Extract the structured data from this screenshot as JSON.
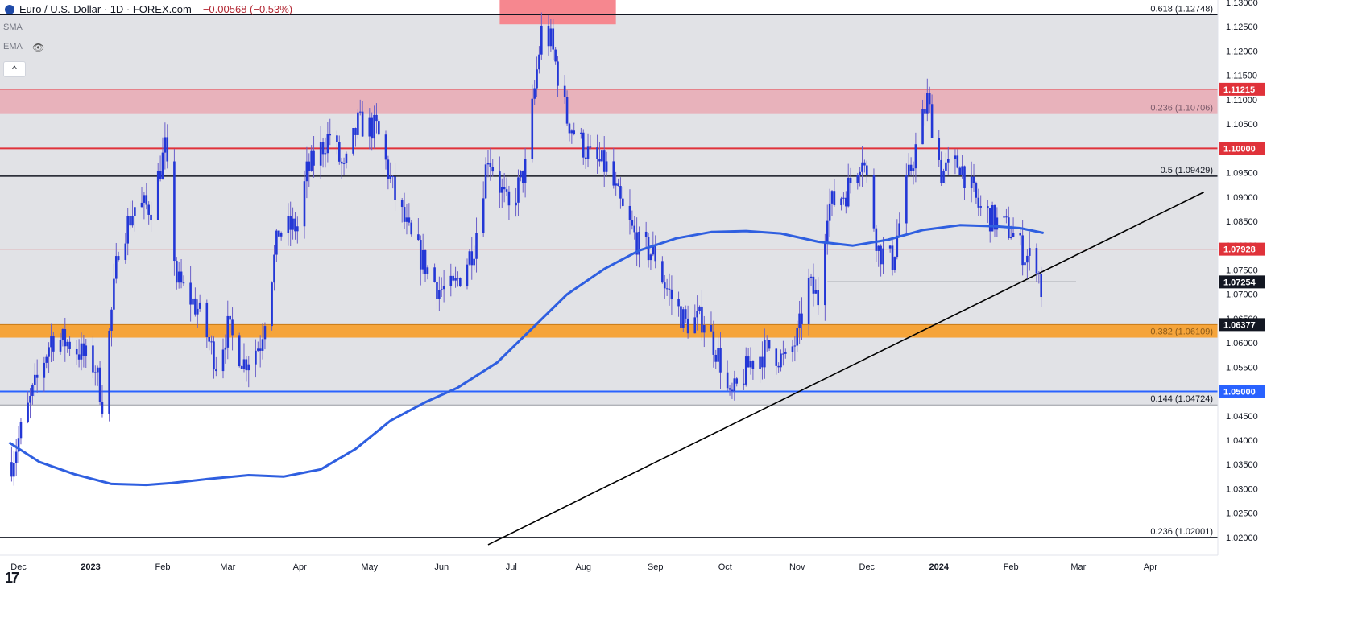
{
  "header": {
    "symbol": "Euro / U.S. Dollar · 1D · FOREX.com",
    "change": "−0.00568 (−0.53%)",
    "indicators": [
      "SMA",
      "EMA"
    ],
    "collapse_label": "^"
  },
  "logo_text": "17",
  "colors": {
    "candle": "#2337d6",
    "ma": "#2f5fe0",
    "red_line": "#e0323a",
    "red_zone": "#e8b2bb",
    "orange_zone": "#f5a43a",
    "blue_line": "#2962ff",
    "gray_zone": "#e1e2e6",
    "top_zone": "#f6878f"
  },
  "chart_data": {
    "type": "candlestick",
    "ylim": [
      1.02,
      1.13
    ],
    "y_ticks": [
      "1.13000",
      "1.12500",
      "1.12000",
      "1.11500",
      "1.11000",
      "1.10500",
      "1.10000",
      "1.09500",
      "1.09000",
      "1.08500",
      "1.08000",
      "1.07500",
      "1.07000",
      "1.06500",
      "1.06000",
      "1.05500",
      "1.05000",
      "1.04500",
      "1.04000",
      "1.03500",
      "1.03000",
      "1.02500",
      "1.02000"
    ],
    "x_labels": [
      {
        "label": "Dec",
        "date": "2022-12-01",
        "bold": false
      },
      {
        "label": "2023",
        "date": "2023-01-01",
        "bold": true
      },
      {
        "label": "Feb",
        "date": "2023-02-01",
        "bold": false
      },
      {
        "label": "Mar",
        "date": "2023-03-01",
        "bold": false
      },
      {
        "label": "Apr",
        "date": "2023-04-01",
        "bold": false
      },
      {
        "label": "May",
        "date": "2023-05-01",
        "bold": false
      },
      {
        "label": "Jun",
        "date": "2023-06-01",
        "bold": false
      },
      {
        "label": "Jul",
        "date": "2023-07-01",
        "bold": false
      },
      {
        "label": "Aug",
        "date": "2023-08-01",
        "bold": false
      },
      {
        "label": "Sep",
        "date": "2023-09-01",
        "bold": false
      },
      {
        "label": "Oct",
        "date": "2023-10-01",
        "bold": false
      },
      {
        "label": "Nov",
        "date": "2023-11-01",
        "bold": false
      },
      {
        "label": "Dec",
        "date": "2023-12-01",
        "bold": false
      },
      {
        "label": "2024",
        "date": "2024-01-01",
        "bold": true
      },
      {
        "label": "Feb",
        "date": "2024-02-01",
        "bold": false
      },
      {
        "label": "Mar",
        "date": "2024-03-01",
        "bold": false
      },
      {
        "label": "Apr",
        "date": "2024-04-01",
        "bold": false
      }
    ],
    "price_badges": [
      {
        "label": "1.11215",
        "value": 1.11215,
        "color": "#e0323a"
      },
      {
        "label": "1.10000",
        "value": 1.1,
        "color": "#e0323a"
      },
      {
        "label": "1.07928",
        "value": 1.07928,
        "color": "#e0323a"
      },
      {
        "label": "1.07254",
        "value": 1.07254,
        "color": "#131722"
      },
      {
        "label": "1.06377",
        "value": 1.06377,
        "color": "#131722"
      },
      {
        "label": "1.05000",
        "value": 1.05,
        "color": "#2962ff"
      }
    ],
    "fib_levels": [
      {
        "label": "0.618 (1.12748)",
        "value": 1.12748
      },
      {
        "label": "0.236 (1.10706)",
        "value": 1.10706
      },
      {
        "label": "0.5 (1.09429)",
        "value": 1.09429
      },
      {
        "label": "0.382 (1.06109)",
        "value": 1.06109
      },
      {
        "label": "0.144 (1.04724)",
        "value": 1.04724
      },
      {
        "label": "0.236 (1.02001)",
        "value": 1.02001
      }
    ],
    "zones": [
      {
        "name": "range",
        "from": 1.04724,
        "to": 1.12748,
        "color": "#e1e2e6"
      },
      {
        "name": "resistance",
        "from": 1.10706,
        "to": 1.11215,
        "color": "#e8b2bb"
      },
      {
        "name": "support",
        "from": 1.06109,
        "to": 1.06377,
        "color": "#f5a43a"
      }
    ],
    "top_box": {
      "date_from": "2023-06-26",
      "date_to": "2023-08-15",
      "from": 1.1255,
      "to": 1.131
    },
    "horizontal_lines": [
      {
        "value": 1.1,
        "color": "#e0323a",
        "width": 2
      },
      {
        "value": 1.07928,
        "color": "#e0323a",
        "width": 1
      },
      {
        "value": 1.05,
        "color": "#2962ff",
        "width": 2
      },
      {
        "value": 1.09429,
        "color": "#131722",
        "width": 1.5
      },
      {
        "value": 1.12748,
        "color": "#131722",
        "width": 1.5
      },
      {
        "value": 1.02001,
        "color": "#131722",
        "width": 1.5
      }
    ],
    "segment_1_07254": {
      "date_from": "2023-11-14",
      "date_to": "2024-02-29",
      "value": 1.07254
    },
    "trendline": [
      [
        "2023-06-21",
        1.0185
      ],
      [
        "2024-04-24",
        1.091
      ]
    ],
    "ma_series": [
      [
        "2022-11-27",
        1.0395
      ],
      [
        "2022-12-10",
        1.0355
      ],
      [
        "2022-12-25",
        1.033
      ],
      [
        "2023-01-10",
        1.031
      ],
      [
        "2023-01-25",
        1.0308
      ],
      [
        "2023-02-05",
        1.0312
      ],
      [
        "2023-02-20",
        1.032
      ],
      [
        "2023-03-10",
        1.0328
      ],
      [
        "2023-03-25",
        1.0325
      ],
      [
        "2023-04-10",
        1.034
      ],
      [
        "2023-04-25",
        1.0382
      ],
      [
        "2023-05-10",
        1.044
      ],
      [
        "2023-05-25",
        1.0478
      ],
      [
        "2023-06-08",
        1.0508
      ],
      [
        "2023-06-25",
        1.056
      ],
      [
        "2023-07-10",
        1.063
      ],
      [
        "2023-07-25",
        1.07
      ],
      [
        "2023-08-10",
        1.0752
      ],
      [
        "2023-08-25",
        1.079
      ],
      [
        "2023-09-10",
        1.0815
      ],
      [
        "2023-09-25",
        1.0828
      ],
      [
        "2023-10-10",
        1.083
      ],
      [
        "2023-10-25",
        1.0825
      ],
      [
        "2023-11-10",
        1.0808
      ],
      [
        "2023-11-25",
        1.08
      ],
      [
        "2023-12-10",
        1.0812
      ],
      [
        "2023-12-25",
        1.0832
      ],
      [
        "2024-01-10",
        1.0842
      ],
      [
        "2024-01-25",
        1.084
      ],
      [
        "2024-02-05",
        1.0836
      ],
      [
        "2024-02-15",
        1.0826
      ]
    ],
    "candle_path": [
      [
        "2022-11-28",
        1.0355
      ],
      [
        "2022-12-06",
        1.048
      ],
      [
        "2022-12-15",
        1.061
      ],
      [
        "2022-12-23",
        1.06
      ],
      [
        "2023-01-03",
        1.055
      ],
      [
        "2023-01-06",
        1.048
      ],
      [
        "2023-01-13",
        1.08
      ],
      [
        "2023-01-20",
        1.088
      ],
      [
        "2023-01-27",
        1.088
      ],
      [
        "2023-02-02",
        1.1
      ],
      [
        "2023-02-07",
        1.073
      ],
      [
        "2023-02-16",
        1.067
      ],
      [
        "2023-02-24",
        1.056
      ],
      [
        "2023-03-01",
        1.063
      ],
      [
        "2023-03-08",
        1.056
      ],
      [
        "2023-03-15",
        1.06
      ],
      [
        "2023-03-23",
        1.083
      ],
      [
        "2023-03-31",
        1.084
      ],
      [
        "2023-04-04",
        1.095
      ],
      [
        "2023-04-14",
        1.103
      ],
      [
        "2023-04-20",
        1.095
      ],
      [
        "2023-04-26",
        1.105
      ],
      [
        "2023-05-04",
        1.104
      ],
      [
        "2023-05-12",
        1.09
      ],
      [
        "2023-05-19",
        1.081
      ],
      [
        "2023-05-31",
        1.071
      ],
      [
        "2023-06-06",
        1.071
      ],
      [
        "2023-06-15",
        1.08
      ],
      [
        "2023-06-21",
        1.099
      ],
      [
        "2023-06-30",
        1.087
      ],
      [
        "2023-07-07",
        1.096
      ],
      [
        "2023-07-14",
        1.124
      ],
      [
        "2023-07-18",
        1.122
      ],
      [
        "2023-07-25",
        1.106
      ],
      [
        "2023-08-04",
        1.098
      ],
      [
        "2023-08-11",
        1.096
      ],
      [
        "2023-08-18",
        1.087
      ],
      [
        "2023-08-25",
        1.08
      ],
      [
        "2023-09-01",
        1.078
      ],
      [
        "2023-09-05",
        1.072
      ],
      [
        "2023-09-14",
        1.064
      ],
      [
        "2023-09-22",
        1.065
      ],
      [
        "2023-09-29",
        1.056
      ],
      [
        "2023-10-03",
        1.048
      ],
      [
        "2023-10-12",
        1.056
      ],
      [
        "2023-10-20",
        1.059
      ],
      [
        "2023-10-27",
        1.056
      ],
      [
        "2023-11-01",
        1.061
      ],
      [
        "2023-11-06",
        1.072
      ],
      [
        "2023-11-10",
        1.069
      ],
      [
        "2023-11-14",
        1.088
      ],
      [
        "2023-11-22",
        1.091
      ],
      [
        "2023-11-29",
        1.099
      ],
      [
        "2023-12-06",
        1.079
      ],
      [
        "2023-12-12",
        1.077
      ],
      [
        "2023-12-18",
        1.092
      ],
      [
        "2023-12-27",
        1.11
      ],
      [
        "2024-01-02",
        1.095
      ],
      [
        "2024-01-10",
        1.097
      ],
      [
        "2024-01-18",
        1.088
      ],
      [
        "2024-01-25",
        1.085
      ],
      [
        "2024-02-01",
        1.083
      ],
      [
        "2024-02-07",
        1.078
      ],
      [
        "2024-02-12",
        1.077
      ],
      [
        "2024-02-14",
        1.071
      ]
    ]
  }
}
